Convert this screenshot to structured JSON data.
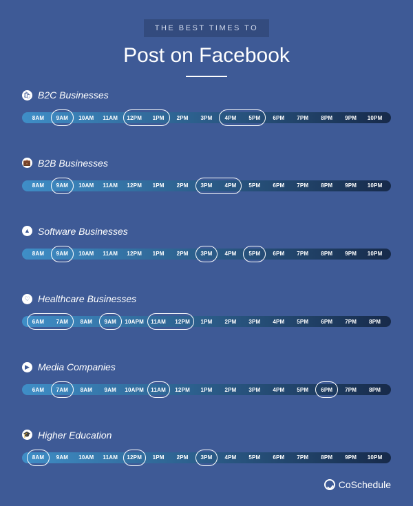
{
  "colors": {
    "page_bg": "#3e5a96",
    "subtitle_bg": "#334b7e",
    "subtitle_text": "#d5ddef",
    "title_text": "#ffffff",
    "rule": "#ffffff",
    "icon_bg": "#ffffff",
    "icon_fg": "#3e5a96",
    "cat_label": "#ffffff",
    "bar_left": "#3f8ec7",
    "bar_right": "#172a4a",
    "hour_text": "#ffffff",
    "highlight_border": "#ffffff",
    "footer_text": "#ffffff"
  },
  "typography": {
    "subtitle_fontsize": 11,
    "title_fontsize": 30,
    "cat_label_fontsize": 14,
    "hour_fontsize": 8,
    "footer_fontsize": 14
  },
  "header": {
    "subtitle": "THE BEST TIMES TO",
    "title": "Post on Facebook"
  },
  "categories": [
    {
      "icon": "🛍",
      "label": "B2C Businesses",
      "hours": [
        "8AM",
        "9AM",
        "10AM",
        "11AM",
        "12PM",
        "1PM",
        "2PM",
        "3PM",
        "4PM",
        "5PM",
        "6PM",
        "7PM",
        "8PM",
        "9PM",
        "10PM"
      ],
      "highlights": [
        [
          1,
          1
        ],
        [
          4,
          5
        ],
        [
          8,
          9
        ]
      ]
    },
    {
      "icon": "💼",
      "label": "B2B Businesses",
      "hours": [
        "8AM",
        "9AM",
        "10AM",
        "11AM",
        "12PM",
        "1PM",
        "2PM",
        "3PM",
        "4PM",
        "5PM",
        "6PM",
        "7PM",
        "8PM",
        "9PM",
        "10PM"
      ],
      "highlights": [
        [
          1,
          1
        ],
        [
          7,
          8
        ]
      ]
    },
    {
      "icon": "▲",
      "label": "Software Businesses",
      "hours": [
        "8AM",
        "9AM",
        "10AM",
        "11AM",
        "12PM",
        "1PM",
        "2PM",
        "3PM",
        "4PM",
        "5PM",
        "6PM",
        "7PM",
        "8PM",
        "9PM",
        "10PM"
      ],
      "highlights": [
        [
          1,
          1
        ],
        [
          7,
          7
        ],
        [
          9,
          9
        ]
      ]
    },
    {
      "icon": "♡",
      "label": "Healthcare Businesses",
      "hours": [
        "6AM",
        "7AM",
        "8AM",
        "9AM",
        "10APM",
        "11AM",
        "12PM",
        "1PM",
        "2PM",
        "3PM",
        "4PM",
        "5PM",
        "6PM",
        "7PM",
        "8PM"
      ],
      "highlights": [
        [
          0,
          1
        ],
        [
          3,
          3
        ],
        [
          5,
          6
        ]
      ]
    },
    {
      "icon": "▶",
      "label": "Media Companies",
      "hours": [
        "6AM",
        "7AM",
        "8AM",
        "9AM",
        "10APM",
        "11AM",
        "12PM",
        "1PM",
        "2PM",
        "3PM",
        "4PM",
        "5PM",
        "6PM",
        "7PM",
        "8PM"
      ],
      "highlights": [
        [
          1,
          1
        ],
        [
          5,
          5
        ],
        [
          12,
          12
        ]
      ]
    },
    {
      "icon": "🎓",
      "label": "Higher Education",
      "hours": [
        "8AM",
        "9AM",
        "10AM",
        "11AM",
        "12PM",
        "1PM",
        "2PM",
        "3PM",
        "4PM",
        "5PM",
        "6PM",
        "7PM",
        "8PM",
        "9PM",
        "10PM"
      ],
      "highlights": [
        [
          0,
          0
        ],
        [
          4,
          4
        ],
        [
          7,
          7
        ]
      ]
    }
  ],
  "footer": {
    "brand": "CoSchedule"
  }
}
